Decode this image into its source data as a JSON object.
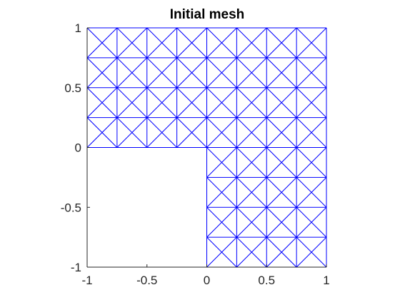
{
  "chart_data": {
    "type": "mesh",
    "title": "Initial mesh",
    "xlim": [
      -1,
      1
    ],
    "ylim": [
      -1,
      1
    ],
    "x_ticks": [
      -1,
      -0.5,
      0,
      0.5,
      1
    ],
    "y_ticks": [
      -1,
      -0.5,
      0,
      0.5,
      1
    ],
    "x_tick_labels": [
      "-1",
      "-0.5",
      "0",
      "0.5",
      "1"
    ],
    "y_tick_labels": [
      "-1",
      "-0.5",
      "0",
      "0.5",
      "1"
    ],
    "grid": false,
    "domain": "L-shaped region: [-1,1]x[0,1] union [0,1]x[-1,0]",
    "mesh_spacing": 0.25,
    "element_type": "triangle (criss-cross: each square split by both diagonals)",
    "square_origins_x": [
      -1,
      -0.75,
      -0.5,
      -0.25,
      0,
      0.25,
      0.5,
      0.75
    ],
    "upper_band_y": [
      0,
      0.25,
      0.5,
      0.75
    ],
    "lower_band_y": [
      -1,
      -0.75,
      -0.5,
      -0.25
    ],
    "lower_band_x": [
      0,
      0.25,
      0.5,
      0.75
    ],
    "colors": {
      "mesh": "#0000ff",
      "axes": "#262626",
      "title": "#000000",
      "background": "#ffffff"
    }
  }
}
